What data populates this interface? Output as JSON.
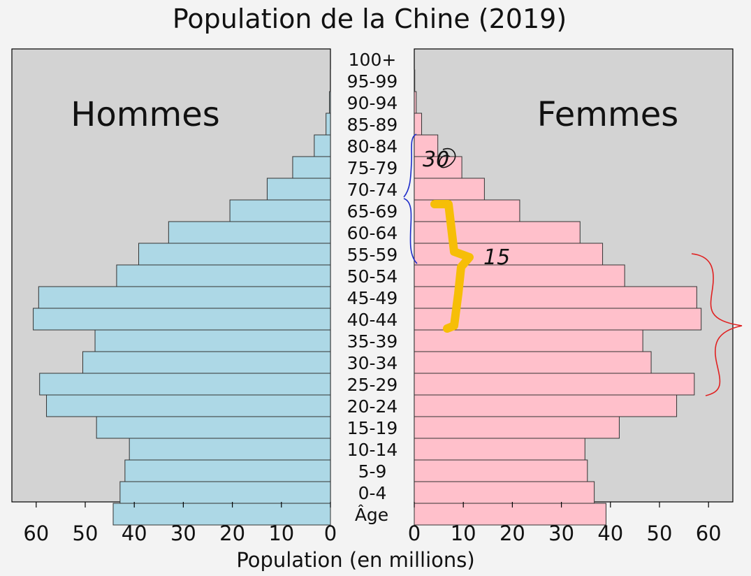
{
  "chart_data": {
    "type": "bar",
    "title": "Population de la Chine (2019)",
    "xlabel": "Population (en millions)",
    "age_axis_label": "Âge",
    "left_label": "Hommes",
    "right_label": "Femmes",
    "xlim": [
      0,
      65
    ],
    "ticks": [
      0,
      10,
      20,
      30,
      40,
      50,
      60
    ],
    "grid": false,
    "categories": [
      "100+",
      "95-99",
      "90-94",
      "85-89",
      "80-84",
      "75-79",
      "70-74",
      "65-69",
      "60-64",
      "55-59",
      "50-54",
      "45-49",
      "40-44",
      "35-39",
      "30-34",
      "25-29",
      "20-24",
      "15-19",
      "10-14",
      "5-9",
      "0-4"
    ],
    "series": [
      {
        "name": "Hommes",
        "color": "#add8e6",
        "values": [
          0.05,
          0.2,
          0.9,
          3.3,
          7.7,
          12.9,
          20.5,
          33.0,
          39.1,
          43.6,
          59.5,
          60.6,
          48.0,
          50.5,
          59.3,
          57.9,
          47.7,
          41.0,
          41.9,
          42.9,
          44.3
        ]
      },
      {
        "name": "Femmes",
        "color": "#ffc0cb",
        "values": [
          0.1,
          0.4,
          1.5,
          4.8,
          9.7,
          14.3,
          21.5,
          33.8,
          38.4,
          42.9,
          57.6,
          58.5,
          46.6,
          48.3,
          57.1,
          53.5,
          41.8,
          34.8,
          35.3,
          36.7,
          39.1
        ]
      }
    ],
    "annotations": [
      "30",
      "15"
    ]
  }
}
